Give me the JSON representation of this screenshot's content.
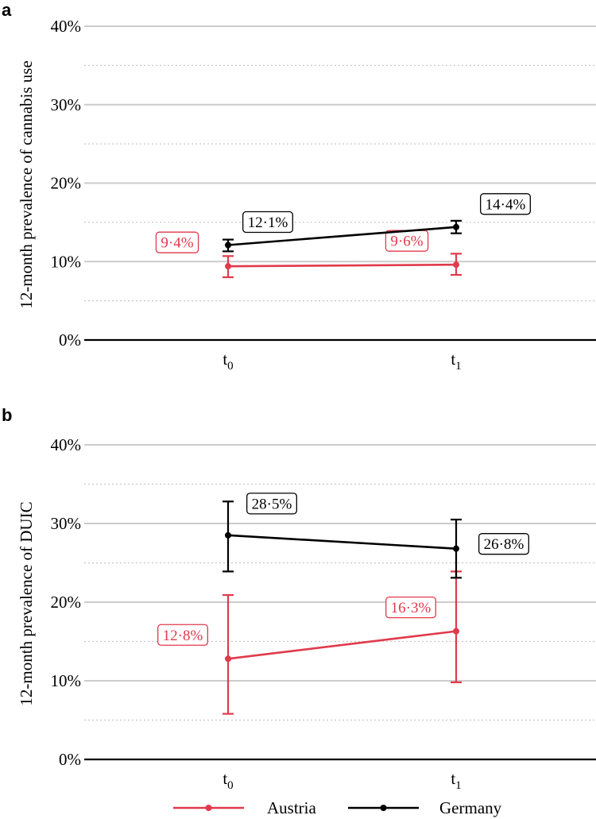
{
  "colors": {
    "austria": "#e03a4b",
    "germany": "#000000",
    "grid_major": "#cccccc",
    "grid_minor": "#c8c8c8"
  },
  "legend": {
    "position": "bottom-center",
    "items": [
      {
        "name": "Austria",
        "color": "#e03a4b"
      },
      {
        "name": "Germany",
        "color": "#000000"
      }
    ]
  },
  "chart_data": [
    {
      "panel": "a",
      "type": "line",
      "ylabel": "12-month prevalence of cannabis use",
      "x_tick_labels": [
        {
          "base": "t",
          "sub": "0"
        },
        {
          "base": "t",
          "sub": "1"
        }
      ],
      "y_ticks": [
        "0%",
        "10%",
        "20%",
        "30%",
        "40%"
      ],
      "ylim": [
        0,
        40
      ],
      "grid": true,
      "series": [
        {
          "name": "Austria",
          "color": "#e03a4b",
          "values": [
            9.4,
            9.6
          ],
          "err_low": [
            8.0,
            8.3
          ],
          "err_high": [
            10.7,
            11.0
          ],
          "labels": [
            "9·4%",
            "9·6%"
          ]
        },
        {
          "name": "Germany",
          "color": "#000000",
          "values": [
            12.1,
            14.4
          ],
          "err_low": [
            11.3,
            13.6
          ],
          "err_high": [
            12.8,
            15.2
          ],
          "labels": [
            "12·1%",
            "14·4%"
          ]
        }
      ]
    },
    {
      "panel": "b",
      "type": "line",
      "ylabel": "12-month prevalence of DUIC",
      "x_tick_labels": [
        {
          "base": "t",
          "sub": "0"
        },
        {
          "base": "t",
          "sub": "1"
        }
      ],
      "y_ticks": [
        "0%",
        "10%",
        "20%",
        "30%",
        "40%"
      ],
      "ylim": [
        0,
        40
      ],
      "grid": true,
      "series": [
        {
          "name": "Austria",
          "color": "#e03a4b",
          "values": [
            12.8,
            16.3
          ],
          "err_low": [
            5.8,
            9.8
          ],
          "err_high": [
            20.9,
            23.9
          ],
          "labels": [
            "12·8%",
            "16·3%"
          ]
        },
        {
          "name": "Germany",
          "color": "#000000",
          "values": [
            28.5,
            26.8
          ],
          "err_low": [
            23.9,
            23.1
          ],
          "err_high": [
            32.8,
            30.5
          ],
          "labels": [
            "28·5%",
            "26·8%"
          ]
        }
      ]
    }
  ]
}
